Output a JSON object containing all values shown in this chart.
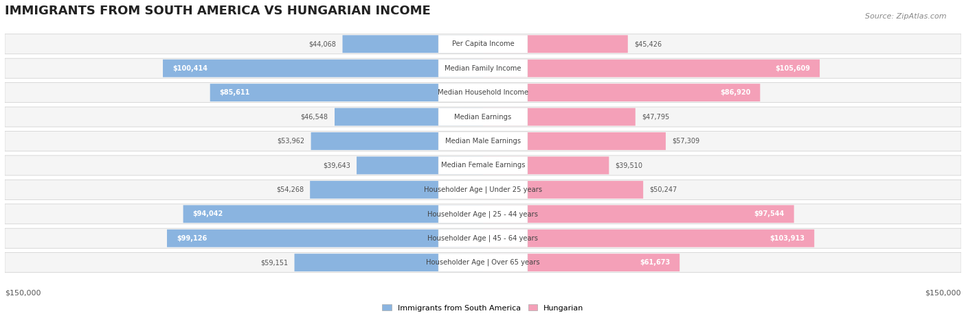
{
  "title": "IMMIGRANTS FROM SOUTH AMERICA VS HUNGARIAN INCOME",
  "source": "Source: ZipAtlas.com",
  "categories": [
    "Per Capita Income",
    "Median Family Income",
    "Median Household Income",
    "Median Earnings",
    "Median Male Earnings",
    "Median Female Earnings",
    "Householder Age | Under 25 years",
    "Householder Age | 25 - 44 years",
    "Householder Age | 45 - 64 years",
    "Householder Age | Over 65 years"
  ],
  "left_values": [
    44068,
    100414,
    85611,
    46548,
    53962,
    39643,
    54268,
    94042,
    99126,
    59151
  ],
  "right_values": [
    45426,
    105609,
    86920,
    47795,
    57309,
    39510,
    50247,
    97544,
    103913,
    61673
  ],
  "left_labels": [
    "$44,068",
    "$100,414",
    "$85,611",
    "$46,548",
    "$53,962",
    "$39,643",
    "$54,268",
    "$94,042",
    "$99,126",
    "$59,151"
  ],
  "right_labels": [
    "$45,426",
    "$105,609",
    "$86,920",
    "$47,795",
    "$57,309",
    "$39,510",
    "$50,247",
    "$97,544",
    "$103,913",
    "$61,673"
  ],
  "left_color": "#8ab4e0",
  "left_color_strong": "#6699cc",
  "right_color": "#f4a0b8",
  "right_color_strong": "#e8728f",
  "bar_bg_color": "#f0f0f0",
  "row_bg_color": "#f5f5f5",
  "max_value": 150000,
  "legend_left": "Immigrants from South America",
  "legend_right": "Hungarian",
  "xlabel_left": "$150,000",
  "xlabel_right": "$150,000"
}
